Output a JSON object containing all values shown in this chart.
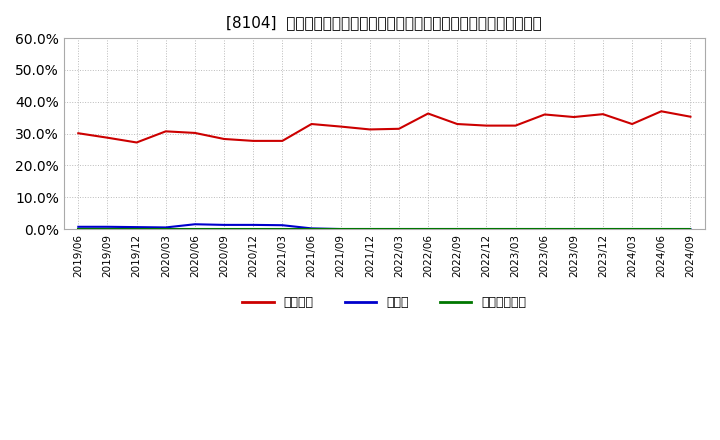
{
  "title": "[8104]  自己資本、のれん、繰延税金資産の総資産に対する比率の推移",
  "x_labels": [
    "2019/06",
    "2019/09",
    "2019/12",
    "2020/03",
    "2020/06",
    "2020/09",
    "2020/12",
    "2021/03",
    "2021/06",
    "2021/09",
    "2021/12",
    "2022/03",
    "2022/06",
    "2022/09",
    "2022/12",
    "2023/03",
    "2023/06",
    "2023/09",
    "2023/12",
    "2024/03",
    "2024/06",
    "2024/09"
  ],
  "equity_ratio": [
    0.301,
    0.287,
    0.272,
    0.307,
    0.302,
    0.283,
    0.277,
    0.277,
    0.33,
    0.322,
    0.313,
    0.315,
    0.363,
    0.33,
    0.325,
    0.325,
    0.36,
    0.352,
    0.361,
    0.33,
    0.37,
    0.353
  ],
  "goodwill_ratio": [
    0.007,
    0.007,
    0.006,
    0.005,
    0.015,
    0.013,
    0.013,
    0.012,
    0.002,
    0.0,
    0.0,
    0.0,
    0.0,
    0.0,
    0.0,
    0.0,
    0.0,
    0.0,
    0.0,
    0.0,
    0.0,
    0.0
  ],
  "deferred_tax_ratio": [
    0.001,
    0.001,
    0.001,
    0.001,
    0.001,
    0.001,
    0.001,
    0.001,
    0.001,
    0.001,
    0.001,
    0.001,
    0.001,
    0.001,
    0.001,
    0.001,
    0.001,
    0.001,
    0.001,
    0.001,
    0.001,
    0.001
  ],
  "equity_color": "#cc0000",
  "goodwill_color": "#0000cc",
  "deferred_tax_color": "#007700",
  "background_color": "#ffffff",
  "plot_bg_color": "#ffffff",
  "grid_color": "#bbbbbb",
  "ylim": [
    0.0,
    0.6
  ],
  "yticks": [
    0.0,
    0.1,
    0.2,
    0.3,
    0.4,
    0.5,
    0.6
  ],
  "legend_labels": [
    "自己資本",
    "のれん",
    "繰延税金資産"
  ]
}
